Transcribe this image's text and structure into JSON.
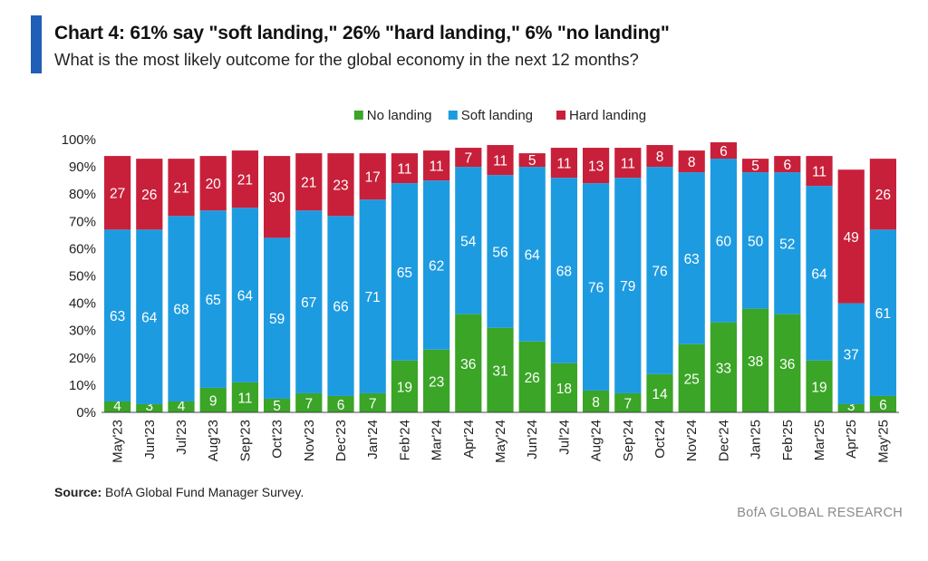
{
  "header": {
    "title": "Chart 4: 61% say \"soft landing,\" 26% \"hard landing,\" 6% \"no landing\"",
    "subtitle": "What is the most likely outcome for the global economy in the next 12 months?"
  },
  "footer": {
    "source_label": "Source:",
    "source_text": " BofA Global Fund Manager Survey.",
    "brand": "BofA GLOBAL RESEARCH"
  },
  "colors": {
    "accent": "#1f5fb8",
    "no_landing": "#3aa526",
    "soft_landing": "#1d9be0",
    "hard_landing": "#c8203a"
  },
  "chart_data": {
    "type": "bar",
    "stacked": true,
    "title": "Chart 4: 61% say \"soft landing,\" 26% \"hard landing,\" 6% \"no landing\"",
    "subtitle": "What is the most likely outcome for the global economy in the next 12 months?",
    "xlabel": "",
    "ylabel": "",
    "ylim": [
      0,
      100
    ],
    "yticks": [
      "0%",
      "10%",
      "20%",
      "30%",
      "40%",
      "50%",
      "60%",
      "70%",
      "80%",
      "90%",
      "100%"
    ],
    "legend_position": "top-center",
    "grid": false,
    "categories": [
      "May'23",
      "Jun'23",
      "Jul'23",
      "Aug'23",
      "Sep'23",
      "Oct'23",
      "Nov'23",
      "Dec'23",
      "Jan'24",
      "Feb'24",
      "Mar'24",
      "Apr'24",
      "May'24",
      "Jun'24",
      "Jul'24",
      "Aug'24",
      "Sep'24",
      "Oct'24",
      "Nov'24",
      "Dec'24",
      "Jan'25",
      "Feb'25",
      "Mar'25",
      "Apr'25",
      "May'25"
    ],
    "series": [
      {
        "name": "No landing",
        "color": "#3aa526",
        "values": [
          4,
          3,
          4,
          9,
          11,
          5,
          7,
          6,
          7,
          19,
          23,
          36,
          31,
          26,
          18,
          8,
          7,
          14,
          25,
          33,
          38,
          36,
          19,
          3,
          6
        ]
      },
      {
        "name": "Soft landing",
        "color": "#1d9be0",
        "values": [
          63,
          64,
          68,
          65,
          64,
          59,
          67,
          66,
          71,
          65,
          62,
          54,
          56,
          64,
          68,
          76,
          79,
          76,
          63,
          60,
          50,
          52,
          64,
          37,
          61
        ]
      },
      {
        "name": "Hard landing",
        "color": "#c8203a",
        "values": [
          27,
          26,
          21,
          20,
          21,
          30,
          21,
          23,
          17,
          11,
          11,
          7,
          11,
          5,
          11,
          13,
          11,
          8,
          8,
          6,
          5,
          6,
          11,
          49,
          26
        ]
      }
    ]
  }
}
